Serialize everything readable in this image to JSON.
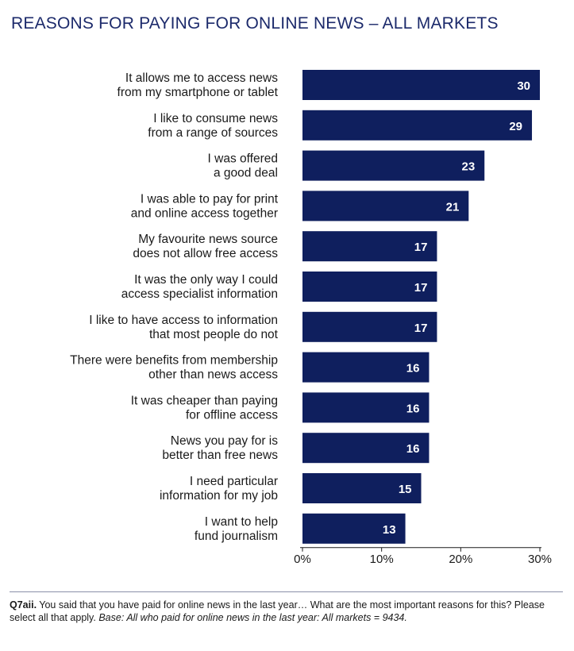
{
  "title": "REASONS FOR PAYING FOR ONLINE NEWS – ALL MARKETS",
  "footnote": {
    "label": "Q7aii.",
    "question": " You said that you have paid for online news in the last year… What are the most important reasons for this? Please select all that apply. ",
    "base": "Base: All who paid for online news in the last year: All markets = 9434."
  },
  "colors": {
    "bar": "#0f1f5e",
    "bar_label": "#ffffff",
    "title": "#1c2a6b",
    "axis": "#1a1a1a"
  },
  "chart_data": {
    "type": "bar",
    "orientation": "horizontal",
    "categories": [
      [
        "It allows me to access news",
        "from my smartphone or tablet"
      ],
      [
        "I like to consume news",
        "from a range of sources"
      ],
      [
        "I was offered",
        "a good deal"
      ],
      [
        "I was able to pay for print",
        "and online access together"
      ],
      [
        "My favourite news source",
        "does not allow free access"
      ],
      [
        "It was the only way I could",
        "access specialist information"
      ],
      [
        "I like to have access to information",
        "that most people do not"
      ],
      [
        "There were benefits from membership",
        "other than news access"
      ],
      [
        "It was cheaper than paying",
        "for offline access"
      ],
      [
        "News you pay for is",
        "better than free news"
      ],
      [
        "I need particular",
        "information for my job"
      ],
      [
        "I want to help",
        "fund journalism"
      ]
    ],
    "values": [
      30,
      29,
      23,
      21,
      17,
      17,
      17,
      16,
      16,
      16,
      15,
      13
    ],
    "xlim": [
      0,
      30
    ],
    "xticks": [
      "0%",
      "10%",
      "20%",
      "30%"
    ],
    "xtick_values": [
      0,
      10,
      20,
      30
    ],
    "data_labels": true,
    "grid": false
  }
}
